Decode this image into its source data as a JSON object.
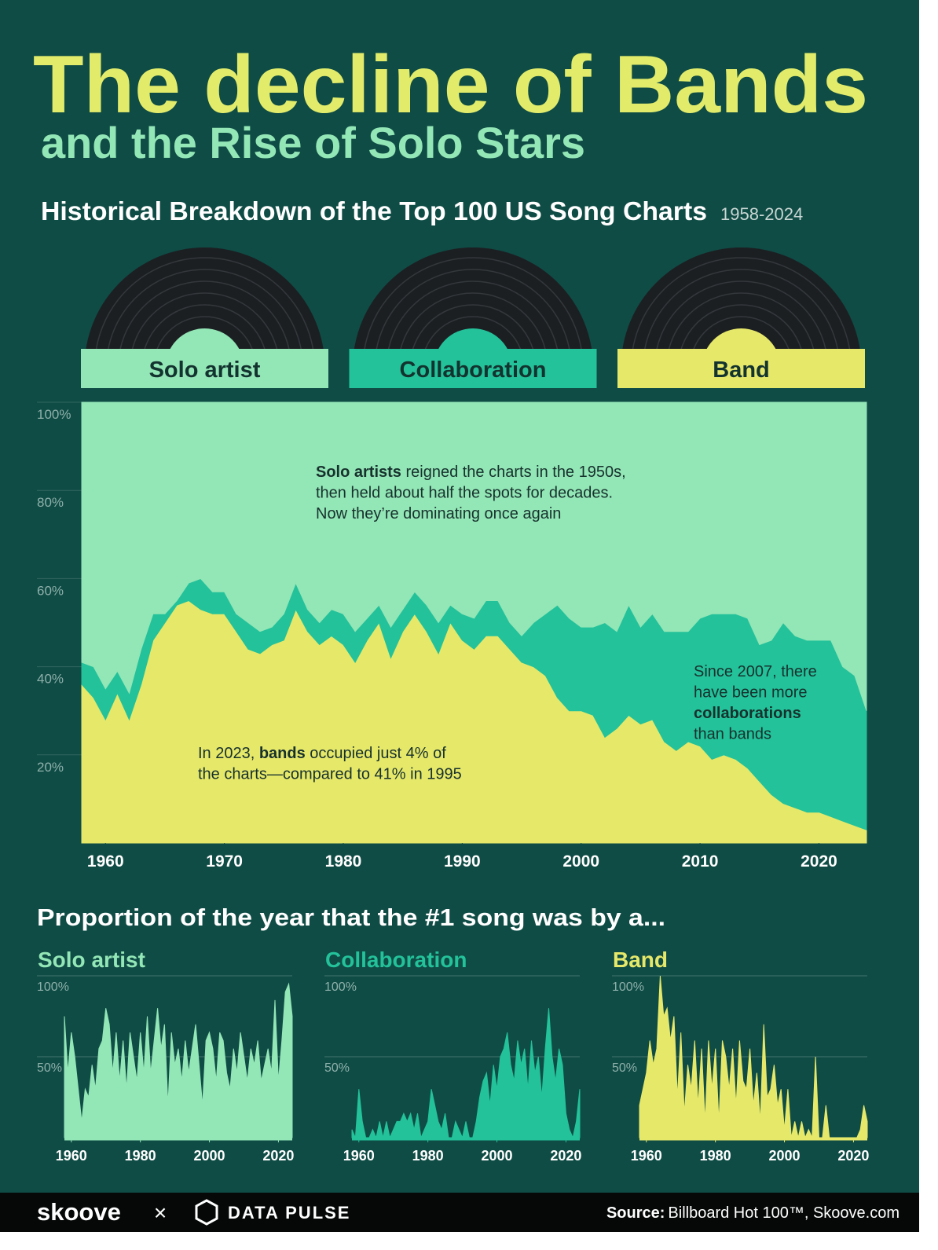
{
  "header": {
    "title": "The decline of Bands",
    "subtitle": "and the Rise of Solo Stars",
    "heading": "Historical Breakdown of the Top 100 US Song Charts",
    "period": "1958-2024"
  },
  "chart_data": [
    {
      "type": "stacked_area",
      "x": [
        1958,
        1959,
        1960,
        1961,
        1962,
        1963,
        1964,
        1965,
        1966,
        1967,
        1968,
        1969,
        1970,
        1971,
        1972,
        1973,
        1974,
        1975,
        1976,
        1977,
        1978,
        1979,
        1980,
        1981,
        1982,
        1983,
        1984,
        1985,
        1986,
        1987,
        1988,
        1989,
        1990,
        1991,
        1992,
        1993,
        1994,
        1995,
        1996,
        1997,
        1998,
        1999,
        2000,
        2001,
        2002,
        2003,
        2004,
        2005,
        2006,
        2007,
        2008,
        2009,
        2010,
        2011,
        2012,
        2013,
        2014,
        2015,
        2016,
        2017,
        2018,
        2019,
        2020,
        2021,
        2022,
        2023,
        2024
      ],
      "xlim": [
        1958,
        2024
      ],
      "xticks": [
        1960,
        1970,
        1980,
        1990,
        2000,
        2010,
        2020
      ],
      "ylim": [
        0,
        100
      ],
      "yticks": [
        {
          "value": 20,
          "label": "20%"
        },
        {
          "value": 40,
          "label": "40%"
        },
        {
          "value": 60,
          "label": "60%"
        },
        {
          "value": 80,
          "label": "80%"
        },
        {
          "value": 100,
          "label": "100%"
        }
      ],
      "series": [
        {
          "name": "Solo artist",
          "color": "#93e6b6",
          "values": [
            59,
            60,
            65,
            61,
            66,
            56,
            48,
            48,
            45,
            41,
            40,
            43,
            43,
            48,
            50,
            52,
            51,
            48,
            41,
            47,
            50,
            47,
            48,
            52,
            49,
            46,
            51,
            47,
            43,
            46,
            50,
            46,
            48,
            49,
            45,
            45,
            50,
            53,
            50,
            48,
            46,
            49,
            51,
            51,
            50,
            52,
            46,
            51,
            48,
            52,
            52,
            52,
            49,
            48,
            48,
            48,
            49,
            55,
            54,
            50,
            53,
            54,
            54,
            54,
            60,
            62,
            70
          ]
        },
        {
          "name": "Collaboration",
          "color": "#23c29a",
          "values": [
            5,
            7,
            7,
            5,
            6,
            8,
            6,
            2,
            1,
            4,
            7,
            5,
            5,
            4,
            6,
            5,
            4,
            6,
            6,
            5,
            5,
            6,
            7,
            7,
            5,
            4,
            7,
            5,
            5,
            6,
            7,
            4,
            6,
            7,
            8,
            8,
            6,
            6,
            10,
            14,
            21,
            21,
            19,
            20,
            26,
            22,
            25,
            22,
            24,
            25,
            27,
            25,
            29,
            33,
            32,
            33,
            34,
            31,
            35,
            41,
            39,
            39,
            39,
            40,
            35,
            34,
            27
          ]
        },
        {
          "name": "Band",
          "color": "#e6e86a",
          "values": [
            36,
            33,
            28,
            34,
            28,
            36,
            46,
            50,
            54,
            55,
            53,
            52,
            52,
            48,
            44,
            43,
            45,
            46,
            53,
            48,
            45,
            47,
            45,
            41,
            46,
            50,
            42,
            48,
            52,
            48,
            43,
            50,
            46,
            44,
            47,
            47,
            44,
            41,
            40,
            38,
            33,
            30,
            30,
            29,
            24,
            26,
            29,
            27,
            28,
            23,
            21,
            23,
            22,
            19,
            20,
            19,
            17,
            14,
            11,
            9,
            8,
            7,
            7,
            6,
            5,
            4,
            3
          ]
        }
      ],
      "annotations": [
        {
          "lines": [
            [
              {
                "text": "Solo artists",
                "bold": true
              },
              {
                "text": " reigned the charts in the 1950s,"
              }
            ],
            [
              {
                "text": "then held about half the spots for decades."
              }
            ],
            [
              {
                "text": "Now they’re dominating once again"
              }
            ]
          ]
        },
        {
          "lines": [
            [
              {
                "text": "In 2023, "
              },
              {
                "text": "bands",
                "bold": true
              },
              {
                "text": " occupied just 4% of"
              }
            ],
            [
              {
                "text": "the charts—compared to 41% in 1995"
              }
            ]
          ]
        },
        {
          "lines": [
            [
              {
                "text": "Since 2007, there"
              }
            ],
            [
              {
                "text": "have been more"
              }
            ],
            [
              {
                "text": "collaborations",
                "bold": true
              }
            ],
            [
              {
                "text": "than bands"
              }
            ]
          ]
        }
      ]
    },
    {
      "type": "area",
      "title": "Solo artist",
      "color": "#93e6b6",
      "x": [
        1958,
        1959,
        1960,
        1961,
        1962,
        1963,
        1964,
        1965,
        1966,
        1967,
        1968,
        1969,
        1970,
        1971,
        1972,
        1973,
        1974,
        1975,
        1976,
        1977,
        1978,
        1979,
        1980,
        1981,
        1982,
        1983,
        1984,
        1985,
        1986,
        1987,
        1988,
        1989,
        1990,
        1991,
        1992,
        1993,
        1994,
        1995,
        1996,
        1997,
        1998,
        1999,
        2000,
        2001,
        2002,
        2003,
        2004,
        2005,
        2006,
        2007,
        2008,
        2009,
        2010,
        2011,
        2012,
        2013,
        2014,
        2015,
        2016,
        2017,
        2018,
        2019,
        2020,
        2021,
        2022,
        2023,
        2024
      ],
      "values": [
        75,
        40,
        65,
        50,
        30,
        10,
        30,
        25,
        45,
        30,
        55,
        60,
        80,
        70,
        40,
        65,
        35,
        60,
        30,
        65,
        50,
        35,
        65,
        40,
        75,
        40,
        60,
        80,
        55,
        70,
        20,
        65,
        45,
        55,
        35,
        60,
        40,
        55,
        70,
        45,
        20,
        60,
        65,
        55,
        35,
        65,
        60,
        40,
        30,
        55,
        40,
        65,
        50,
        35,
        55,
        45,
        60,
        35,
        45,
        55,
        40,
        85,
        35,
        60,
        90,
        95,
        75
      ],
      "xlim": [
        1958,
        2024
      ],
      "xticks": [
        1960,
        1980,
        2000,
        2020
      ],
      "ylim": [
        0,
        100
      ],
      "yticks": [
        {
          "value": 50,
          "label": "50%"
        },
        {
          "value": 100,
          "label": "100%"
        }
      ]
    },
    {
      "type": "area",
      "title": "Collaboration",
      "color": "#23c29a",
      "x": [
        1958,
        1959,
        1960,
        1961,
        1962,
        1963,
        1964,
        1965,
        1966,
        1967,
        1968,
        1969,
        1970,
        1971,
        1972,
        1973,
        1974,
        1975,
        1976,
        1977,
        1978,
        1979,
        1980,
        1981,
        1982,
        1983,
        1984,
        1985,
        1986,
        1987,
        1988,
        1989,
        1990,
        1991,
        1992,
        1993,
        1994,
        1995,
        1996,
        1997,
        1998,
        1999,
        2000,
        2001,
        2002,
        2003,
        2004,
        2005,
        2006,
        2007,
        2008,
        2009,
        2010,
        2011,
        2012,
        2013,
        2014,
        2015,
        2016,
        2017,
        2018,
        2019,
        2020,
        2021,
        2022,
        2023,
        2024
      ],
      "values": [
        5,
        0,
        30,
        10,
        0,
        0,
        5,
        0,
        10,
        0,
        10,
        0,
        5,
        10,
        10,
        15,
        10,
        15,
        5,
        15,
        0,
        5,
        10,
        30,
        20,
        10,
        5,
        15,
        0,
        0,
        10,
        5,
        0,
        10,
        0,
        0,
        10,
        25,
        35,
        40,
        20,
        45,
        30,
        50,
        55,
        65,
        45,
        35,
        60,
        45,
        55,
        30,
        60,
        40,
        50,
        25,
        55,
        80,
        50,
        35,
        55,
        45,
        15,
        5,
        0,
        10,
        30
      ],
      "xlim": [
        1958,
        2024
      ],
      "xticks": [
        1960,
        1980,
        2000,
        2020
      ],
      "ylim": [
        0,
        100
      ],
      "yticks": [
        {
          "value": 50,
          "label": "50%"
        },
        {
          "value": 100,
          "label": "100%"
        }
      ]
    },
    {
      "type": "area",
      "title": "Band",
      "color": "#e6e86a",
      "x": [
        1958,
        1959,
        1960,
        1961,
        1962,
        1963,
        1964,
        1965,
        1966,
        1967,
        1968,
        1969,
        1970,
        1971,
        1972,
        1973,
        1974,
        1975,
        1976,
        1977,
        1978,
        1979,
        1980,
        1981,
        1982,
        1983,
        1984,
        1985,
        1986,
        1987,
        1988,
        1989,
        1990,
        1991,
        1992,
        1993,
        1994,
        1995,
        1996,
        1997,
        1998,
        1999,
        2000,
        2001,
        2002,
        2003,
        2004,
        2005,
        2006,
        2007,
        2008,
        2009,
        2010,
        2011,
        2012,
        2013,
        2014,
        2015,
        2016,
        2017,
        2018,
        2019,
        2020,
        2021,
        2022,
        2023,
        2024
      ],
      "values": [
        20,
        30,
        40,
        60,
        45,
        55,
        100,
        75,
        80,
        60,
        75,
        25,
        65,
        15,
        45,
        30,
        60,
        20,
        55,
        10,
        60,
        30,
        55,
        10,
        60,
        50,
        30,
        55,
        20,
        60,
        35,
        30,
        55,
        20,
        40,
        10,
        70,
        25,
        30,
        45,
        20,
        30,
        5,
        30,
        0,
        10,
        0,
        10,
        0,
        5,
        0,
        50,
        0,
        0,
        20,
        0,
        0,
        0,
        0,
        0,
        0,
        0,
        0,
        0,
        5,
        20,
        10
      ],
      "xlim": [
        1958,
        2024
      ],
      "xticks": [
        1960,
        1980,
        2000,
        2020
      ],
      "ylim": [
        0,
        100
      ],
      "yticks": [
        {
          "value": 50,
          "label": "50%"
        },
        {
          "value": 100,
          "label": "100%"
        }
      ]
    }
  ],
  "section_title": "Proportion of the year that the #1 song was by a...",
  "footer": {
    "brand": "skoove",
    "separator": "×",
    "partner": "DATA PULSE",
    "source_label": "Source:",
    "source": "Billboard Hot 100™, Skoove.com"
  }
}
